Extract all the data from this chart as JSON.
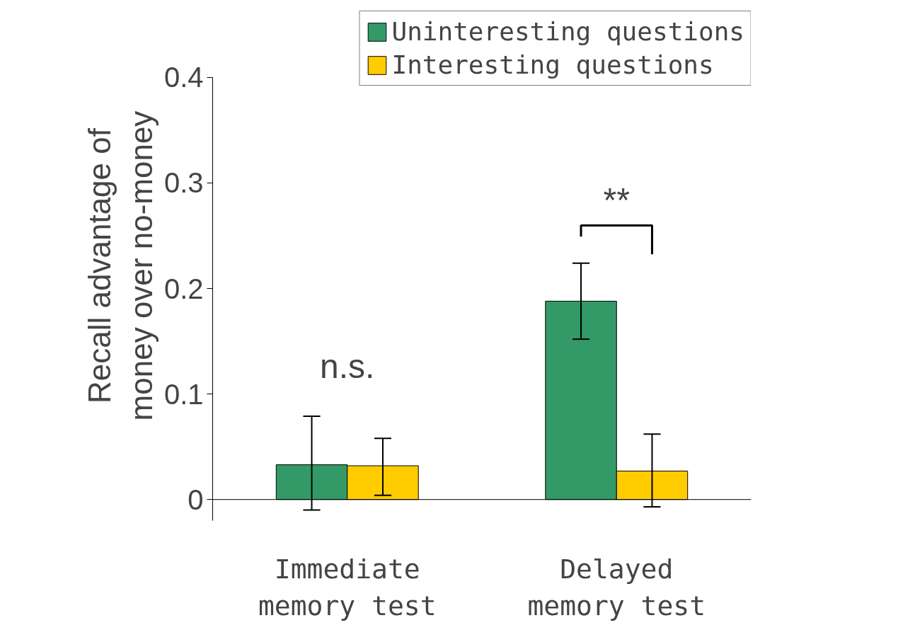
{
  "chart_data": {
    "type": "bar",
    "ylabel": "Recall advantage of\nmoney over no-money",
    "categories": [
      "Immediate\nmemory test",
      "Delayed\nmemory test"
    ],
    "series": [
      {
        "name": "Uninteresting questions",
        "color": "#339966",
        "values": [
          0.033,
          0.188
        ],
        "errors": [
          [
            -0.01,
            0.079
          ],
          [
            0.152,
            0.224
          ]
        ]
      },
      {
        "name": "Interesting questions",
        "color": "#ffcc00",
        "values": [
          0.032,
          0.027
        ],
        "errors": [
          [
            0.004,
            0.058
          ],
          [
            -0.007,
            0.062
          ]
        ]
      }
    ],
    "ylim": [
      -0.02,
      0.4
    ],
    "yticks": [
      {
        "value": 0,
        "label": "0"
      },
      0.1,
      0.2,
      0.3,
      0.4
    ],
    "grid": false,
    "legend": "top right",
    "annotations": [
      "n.s.",
      "**"
    ]
  }
}
